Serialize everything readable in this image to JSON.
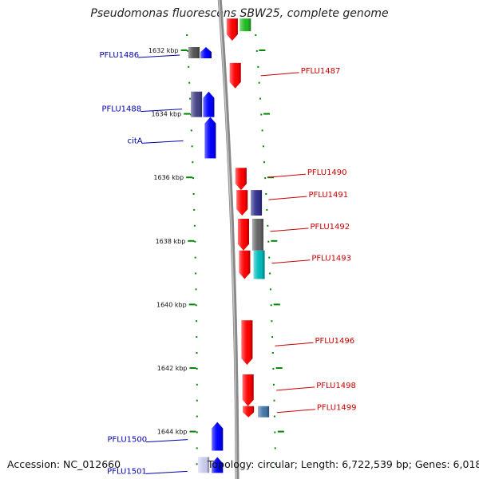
{
  "title": "Pseudomonas fluorescens SBW25, complete genome",
  "accession": "Accession: NC_012660",
  "summary": "Topology: circular; Length: 6,722,539 bp; Genes: 6,018",
  "colors": {
    "forward_label": "#cc0000",
    "reverse_label": "#0000aa",
    "tick": "#008800",
    "backbone": "#888888"
  },
  "kbp_ticks": [
    {
      "label": "1632 kbp",
      "kbp": 1632
    },
    {
      "label": "1634 kbp",
      "kbp": 1634
    },
    {
      "label": "1636 kbp",
      "kbp": 1636
    },
    {
      "label": "1638 kbp",
      "kbp": 1638
    },
    {
      "label": "1640 kbp",
      "kbp": 1640
    },
    {
      "label": "1642 kbp",
      "kbp": 1642
    },
    {
      "label": "1644 kbp",
      "kbp": 1644
    }
  ],
  "gene_labels": [
    {
      "name": "PFLU1486",
      "strand": "reverse",
      "kbp": 1632.1
    },
    {
      "name": "PFLU1487",
      "strand": "forward",
      "kbp": 1632.7
    },
    {
      "name": "PFLU1488",
      "strand": "reverse",
      "kbp": 1633.8
    },
    {
      "name": "citA",
      "strand": "reverse",
      "kbp": 1634.8
    },
    {
      "name": "PFLU1490",
      "strand": "forward",
      "kbp": 1635.9
    },
    {
      "name": "PFLU1491",
      "strand": "forward",
      "kbp": 1636.6
    },
    {
      "name": "PFLU1492",
      "strand": "forward",
      "kbp": 1637.6
    },
    {
      "name": "PFLU1493",
      "strand": "forward",
      "kbp": 1638.6
    },
    {
      "name": "PFLU1496",
      "strand": "forward",
      "kbp": 1641.2
    },
    {
      "name": "PFLU1498",
      "strand": "forward",
      "kbp": 1642.6
    },
    {
      "name": "PFLU1499",
      "strand": "forward",
      "kbp": 1643.3
    },
    {
      "name": "PFLU1500",
      "strand": "reverse",
      "kbp": 1644.2
    },
    {
      "name": "PFLU1501",
      "strand": "reverse",
      "kbp": 1645.2
    }
  ],
  "features": [
    {
      "track": "fwd-cds",
      "strand": "forward",
      "color": "#ff0000",
      "start": 1631.0,
      "end": 1631.7
    },
    {
      "track": "fwd-cds",
      "strand": "forward",
      "color": "#ff0000",
      "start": 1632.4,
      "end": 1633.2
    },
    {
      "track": "fwd-cds",
      "strand": "forward",
      "color": "#ff0000",
      "start": 1635.7,
      "end": 1636.4
    },
    {
      "track": "fwd-cds",
      "strand": "forward",
      "color": "#ff0000",
      "start": 1636.4,
      "end": 1637.2
    },
    {
      "track": "fwd-cds",
      "strand": "forward",
      "color": "#ff0000",
      "start": 1637.3,
      "end": 1638.3
    },
    {
      "track": "fwd-cds",
      "strand": "forward",
      "color": "#ff0000",
      "start": 1638.3,
      "end": 1639.2
    },
    {
      "track": "fwd-cds",
      "strand": "forward",
      "color": "#ff0000",
      "start": 1640.5,
      "end": 1641.9
    },
    {
      "track": "fwd-cds",
      "strand": "forward",
      "color": "#ff0000",
      "start": 1642.2,
      "end": 1643.2
    },
    {
      "track": "fwd-cds",
      "strand": "forward",
      "color": "#ff0000",
      "start": 1643.2,
      "end": 1643.55
    },
    {
      "track": "fwd-cog",
      "strand": "forward",
      "color": "#22bb22",
      "start": 1631.0,
      "end": 1631.4
    },
    {
      "track": "fwd-cog",
      "strand": "forward",
      "color": "#33338f",
      "start": 1636.4,
      "end": 1637.2
    },
    {
      "track": "fwd-cog",
      "strand": "forward",
      "color": "#666666",
      "start": 1637.3,
      "end": 1638.3
    },
    {
      "track": "fwd-cog",
      "strand": "forward",
      "color": "#00bbbb",
      "start": 1638.3,
      "end": 1639.2
    },
    {
      "track": "fwd-cog",
      "strand": "forward",
      "color": "#4477aa",
      "start": 1643.2,
      "end": 1643.55
    },
    {
      "track": "rev-cds",
      "strand": "reverse",
      "color": "#0000ff",
      "start": 1631.9,
      "end": 1632.25
    },
    {
      "track": "rev-cds",
      "strand": "reverse",
      "color": "#0000ff",
      "start": 1633.3,
      "end": 1634.1
    },
    {
      "track": "rev-cds",
      "strand": "reverse",
      "color": "#0000ff",
      "start": 1634.1,
      "end": 1635.4
    },
    {
      "track": "rev-cds",
      "strand": "reverse",
      "color": "#0000ff",
      "start": 1643.7,
      "end": 1644.6
    },
    {
      "track": "rev-cds",
      "strand": "reverse",
      "color": "#0000ff",
      "start": 1644.8,
      "end": 1645.3
    },
    {
      "track": "rev-cog",
      "strand": "reverse",
      "color": "#555555",
      "start": 1631.9,
      "end": 1632.25
    },
    {
      "track": "rev-cog",
      "strand": "reverse",
      "color": "#444488",
      "start": 1633.3,
      "end": 1634.1
    },
    {
      "track": "rev-cog",
      "strand": "reverse",
      "color": "#ccccee",
      "start": 1644.8,
      "end": 1645.3
    }
  ]
}
